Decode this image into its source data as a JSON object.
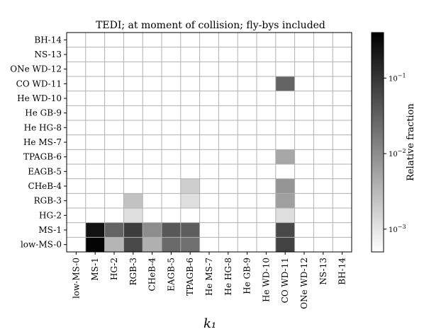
{
  "chart_data": {
    "type": "heatmap",
    "title": "TEDI; at moment of collision; fly-bys included",
    "xlabel": "k₁",
    "ylabel": "",
    "categories": [
      "low-MS-0",
      "MS-1",
      "HG-2",
      "RGB-3",
      "CHeB-4",
      "EAGB-5",
      "TPAGB-6",
      "He MS-7",
      "He HG-8",
      "He GB-9",
      "He WD-10",
      "CO WD-11",
      "ONe WD-12",
      "NS-13",
      "BH-14"
    ],
    "colorbar": {
      "label": "Relative fraction",
      "scale": "log",
      "range": [
        0.0005,
        0.4
      ],
      "ticks": [
        {
          "value": 0.001,
          "base": "10",
          "exp": "−3"
        },
        {
          "value": 0.01,
          "base": "10",
          "exp": "−2"
        },
        {
          "value": 0.1,
          "base": "10",
          "exp": "−1"
        }
      ]
    },
    "colormap": [
      "#ffffff",
      "#000000"
    ],
    "cells": [
      {
        "x": "MS-1",
        "y": "low-MS-0",
        "value": 0.36
      },
      {
        "x": "HG-2",
        "y": "low-MS-0",
        "value": 0.0035
      },
      {
        "x": "RGB-3",
        "y": "low-MS-0",
        "value": 0.06
      },
      {
        "x": "CHeB-4",
        "y": "low-MS-0",
        "value": 0.004
      },
      {
        "x": "EAGB-5",
        "y": "low-MS-0",
        "value": 0.025
      },
      {
        "x": "TPAGB-6",
        "y": "low-MS-0",
        "value": 0.022
      },
      {
        "x": "CO WD-11",
        "y": "low-MS-0",
        "value": 0.07
      },
      {
        "x": "MS-1",
        "y": "MS-1",
        "value": 0.25
      },
      {
        "x": "HG-2",
        "y": "MS-1",
        "value": 0.03
      },
      {
        "x": "RGB-3",
        "y": "MS-1",
        "value": 0.08
      },
      {
        "x": "CHeB-4",
        "y": "MS-1",
        "value": 0.01
      },
      {
        "x": "EAGB-5",
        "y": "MS-1",
        "value": 0.04
      },
      {
        "x": "TPAGB-6",
        "y": "MS-1",
        "value": 0.035
      },
      {
        "x": "CO WD-11",
        "y": "MS-1",
        "value": 0.06
      },
      {
        "x": "RGB-3",
        "y": "HG-2",
        "value": 0.0012
      },
      {
        "x": "CO WD-11",
        "y": "HG-2",
        "value": 0.0012
      },
      {
        "x": "RGB-3",
        "y": "RGB-3",
        "value": 0.0025
      },
      {
        "x": "TPAGB-6",
        "y": "RGB-3",
        "value": 0.0012
      },
      {
        "x": "CO WD-11",
        "y": "RGB-3",
        "value": 0.006
      },
      {
        "x": "TPAGB-6",
        "y": "CHeB-4",
        "value": 0.0018
      },
      {
        "x": "CO WD-11",
        "y": "CHeB-4",
        "value": 0.008
      },
      {
        "x": "CO WD-11",
        "y": "TPAGB-6",
        "value": 0.005
      },
      {
        "x": "CO WD-11",
        "y": "CO WD-11",
        "value": 0.03
      }
    ]
  }
}
